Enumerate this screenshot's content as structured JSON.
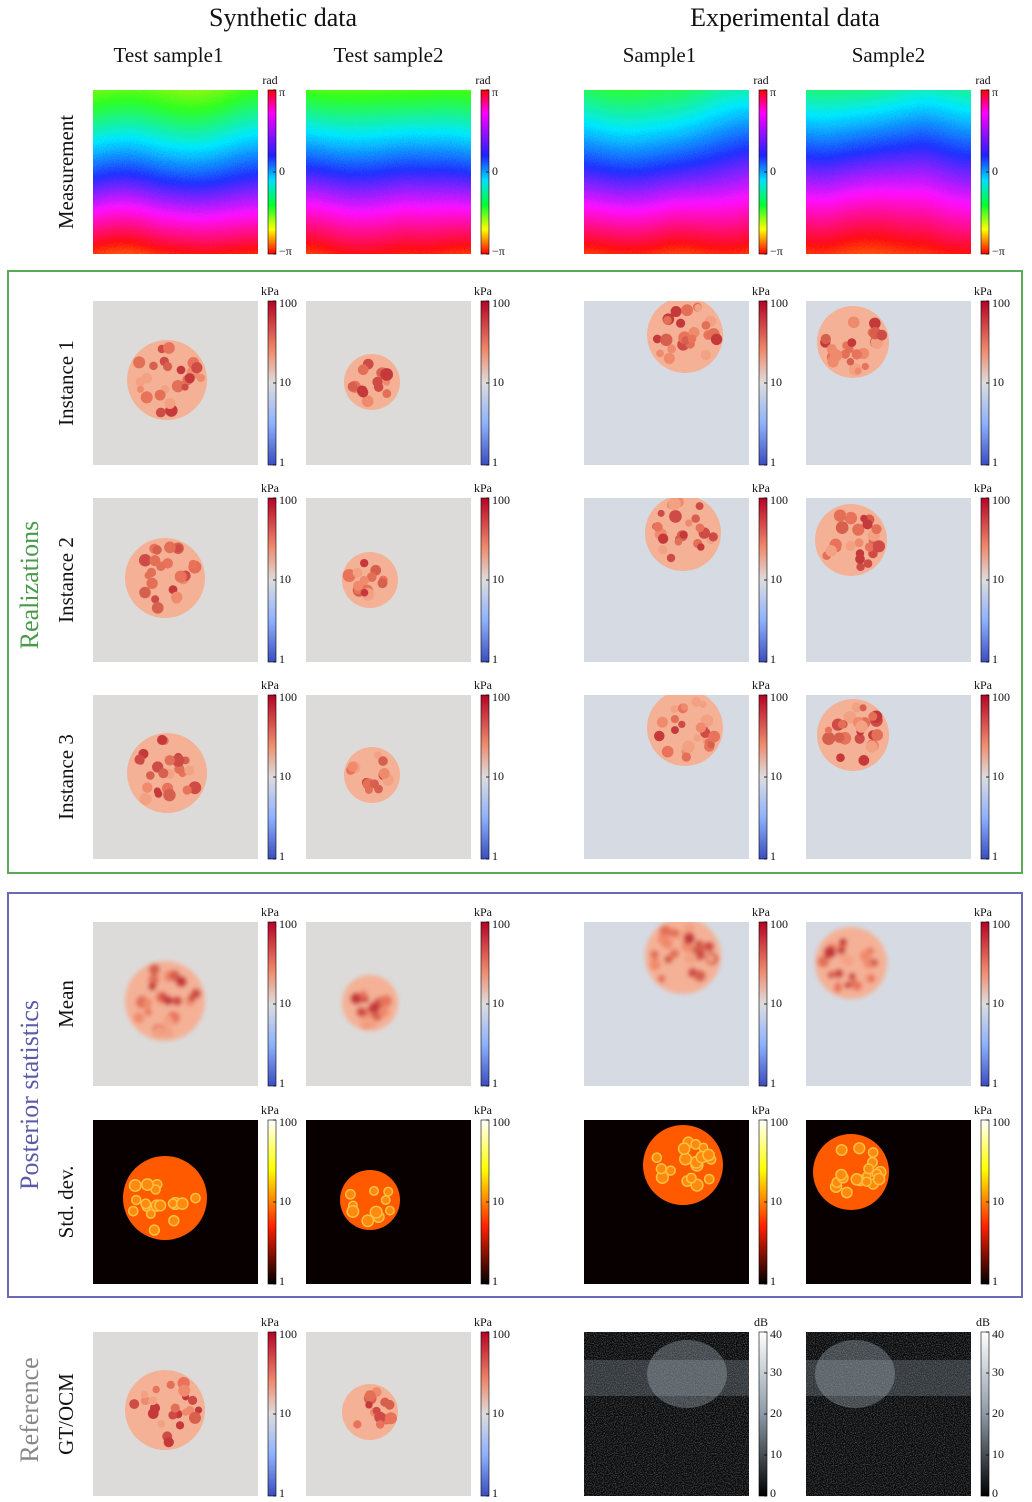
{
  "headers": [
    "Synthetic data",
    "Experimental data"
  ],
  "columns": [
    "Test sample1",
    "Test sample2",
    "Sample1",
    "Sample2"
  ],
  "groups": [
    "Realizations",
    "Posterior statistics",
    "Reference"
  ],
  "rows": [
    {
      "label": "Measurement",
      "colorbars": [
        {
          "unit": "rad",
          "ticks": [
            "π",
            "0",
            "−π"
          ]
        },
        {
          "unit": "rad",
          "ticks": [
            "π",
            "0",
            "−π"
          ]
        },
        {
          "unit": "rad",
          "ticks": [
            "π",
            "0",
            "−π"
          ]
        },
        {
          "unit": "rad",
          "ticks": [
            "π",
            "0",
            "−π"
          ]
        }
      ]
    },
    {
      "label": "Instance 1",
      "colorbars": [
        {
          "unit": "kPa",
          "ticks": [
            100,
            10,
            1
          ]
        },
        {
          "unit": "kPa",
          "ticks": [
            100,
            10,
            1
          ]
        },
        {
          "unit": "kPa",
          "ticks": [
            100,
            10,
            1
          ]
        },
        {
          "unit": "kPa",
          "ticks": [
            100,
            10,
            1
          ]
        }
      ]
    },
    {
      "label": "Instance 2",
      "colorbars": [
        {
          "unit": "kPa",
          "ticks": [
            100,
            10,
            1
          ]
        },
        {
          "unit": "kPa",
          "ticks": [
            100,
            10,
            1
          ]
        },
        {
          "unit": "kPa",
          "ticks": [
            100,
            10,
            1
          ]
        },
        {
          "unit": "kPa",
          "ticks": [
            100,
            10,
            1
          ]
        }
      ]
    },
    {
      "label": "Instance 3",
      "colorbars": [
        {
          "unit": "kPa",
          "ticks": [
            100,
            10,
            1
          ]
        },
        {
          "unit": "kPa",
          "ticks": [
            100,
            10,
            1
          ]
        },
        {
          "unit": "kPa",
          "ticks": [
            100,
            10,
            1
          ]
        },
        {
          "unit": "kPa",
          "ticks": [
            100,
            10,
            1
          ]
        }
      ]
    },
    {
      "label": "Mean",
      "colorbars": [
        {
          "unit": "kPa",
          "ticks": [
            100,
            10,
            1
          ]
        },
        {
          "unit": "kPa",
          "ticks": [
            100,
            10,
            1
          ]
        },
        {
          "unit": "kPa",
          "ticks": [
            100,
            10,
            1
          ]
        },
        {
          "unit": "kPa",
          "ticks": [
            100,
            10,
            1
          ]
        }
      ]
    },
    {
      "label": "Std. dev.",
      "colorbars": [
        {
          "unit": "kPa",
          "ticks": [
            100,
            10,
            1
          ]
        },
        {
          "unit": "kPa",
          "ticks": [
            100,
            10,
            1
          ]
        },
        {
          "unit": "kPa",
          "ticks": [
            100,
            10,
            1
          ]
        },
        {
          "unit": "kPa",
          "ticks": [
            100,
            10,
            1
          ]
        }
      ]
    },
    {
      "label": "GT/OCM",
      "colorbars": [
        {
          "unit": "kPa",
          "ticks": [
            100,
            10,
            1
          ]
        },
        {
          "unit": "kPa",
          "ticks": [
            100,
            10,
            1
          ]
        },
        {
          "unit": "dB",
          "ticks": [
            40,
            30,
            20,
            10,
            0
          ]
        },
        {
          "unit": "dB",
          "ticks": [
            40,
            30,
            20,
            10,
            0
          ]
        }
      ]
    }
  ]
}
